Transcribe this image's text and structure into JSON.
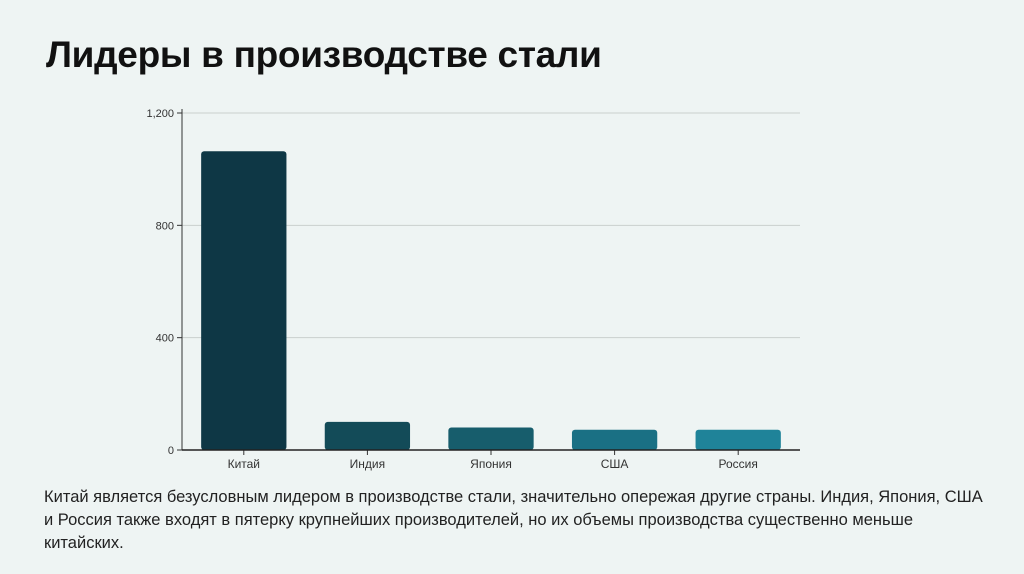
{
  "title": "Лидеры в производстве стали",
  "description": "Китай является безусловным лидером в производстве стали, значительно опережая другие страны. Индия, Япония, США и Россия также входят в пятерку крупнейших производителей, но их объемы производства существенно меньше китайских.",
  "chart_data": {
    "type": "bar",
    "title": "",
    "xlabel": "",
    "ylabel": "",
    "categories": [
      "Китай",
      "Индия",
      "Япония",
      "США",
      "Россия"
    ],
    "values": [
      1064,
      100,
      80,
      72,
      72
    ],
    "ylim": [
      0,
      1200
    ],
    "yticks": [
      0,
      400,
      800,
      1200
    ],
    "ytick_labels": [
      "0",
      "400",
      "800",
      "1,200"
    ],
    "grid": true,
    "legend": "none",
    "colors": [
      "#0e3745",
      "#134b58",
      "#175d6c",
      "#1a7084",
      "#1f8399"
    ]
  }
}
